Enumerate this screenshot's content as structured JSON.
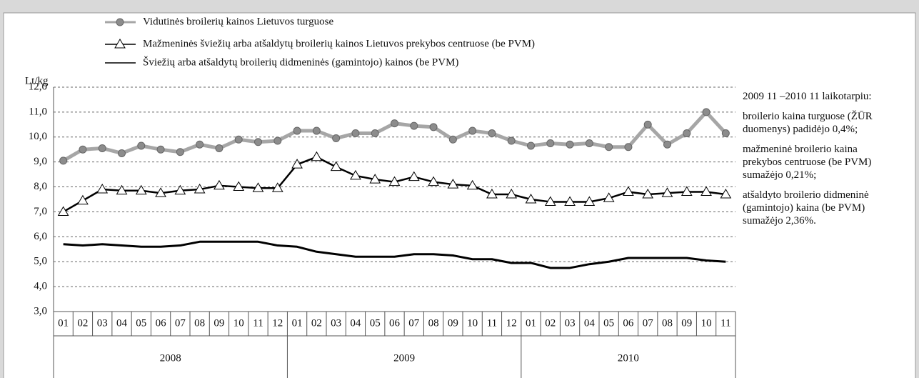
{
  "chart_data": {
    "type": "line",
    "y_label": "Lt/kg",
    "categories": [
      "01",
      "02",
      "03",
      "04",
      "05",
      "06",
      "07",
      "08",
      "09",
      "10",
      "11",
      "12",
      "01",
      "02",
      "03",
      "04",
      "05",
      "06",
      "07",
      "08",
      "09",
      "10",
      "11",
      "12",
      "01",
      "02",
      "03",
      "04",
      "05",
      "06",
      "07",
      "08",
      "09",
      "10",
      "11"
    ],
    "x_groups": [
      "2008",
      "2009",
      "2010"
    ],
    "series": [
      {
        "name": "Vidutinės broilerių kainos Lietuvos turguose",
        "color": "#a6a6a6",
        "marker": "circle",
        "values": [
          9.05,
          9.5,
          9.55,
          9.35,
          9.65,
          9.5,
          9.4,
          9.7,
          9.55,
          9.9,
          9.8,
          9.85,
          10.25,
          10.25,
          9.95,
          10.15,
          10.15,
          10.55,
          10.45,
          10.4,
          9.9,
          10.25,
          10.15,
          9.85,
          9.65,
          9.75,
          9.7,
          9.75,
          9.6,
          9.6,
          10.5,
          9.7,
          10.15,
          11.0,
          10.15
        ]
      },
      {
        "name": "Mažmeninės šviežių arba atšaldytų broilerių kainos Lietuvos prekybos centruose (be PVM)",
        "color": "#000000",
        "marker": "triangle",
        "values": [
          7.0,
          7.45,
          7.9,
          7.85,
          7.85,
          7.75,
          7.85,
          7.9,
          8.05,
          8.0,
          7.95,
          7.95,
          8.9,
          9.2,
          8.8,
          8.45,
          8.3,
          8.2,
          8.4,
          8.2,
          8.1,
          8.05,
          7.7,
          7.7,
          7.5,
          7.4,
          7.4,
          7.4,
          7.55,
          7.8,
          7.7,
          7.75,
          7.8,
          7.8,
          7.7
        ]
      },
      {
        "name": "Šviežių arba atšaldytų  broilerių didmeninės (gamintojo) kainos (be PVM)",
        "color": "#000000",
        "marker": "none",
        "values": [
          5.7,
          5.65,
          5.7,
          5.65,
          5.6,
          5.6,
          5.65,
          5.8,
          5.8,
          5.8,
          5.8,
          5.65,
          5.6,
          5.4,
          5.3,
          5.2,
          5.2,
          5.2,
          5.3,
          5.3,
          5.25,
          5.1,
          5.1,
          4.95,
          4.95,
          4.75,
          4.75,
          4.9,
          5.0,
          5.15,
          5.15,
          5.15,
          5.15,
          5.05,
          5.0
        ]
      }
    ],
    "ylim": [
      3,
      12
    ],
    "yticks": [
      {
        "value": 3,
        "label": "3,0"
      },
      {
        "value": 4,
        "label": "4,0"
      },
      {
        "value": 5,
        "label": "5,0"
      },
      {
        "value": 6,
        "label": "6,0"
      },
      {
        "value": 7,
        "label": "7,0"
      },
      {
        "value": 8,
        "label": "8,0"
      },
      {
        "value": 9,
        "label": "9,0"
      },
      {
        "value": 10,
        "label": "10,0"
      },
      {
        "value": 11,
        "label": "11,0"
      },
      {
        "value": 12,
        "label": "12,0"
      }
    ],
    "grid": true,
    "annotations": [
      "2009 11 –2010 11 laikotarpiu:",
      "broilerio kaina turguose (ŽŪR duomenys) padidėjo 0,4%;",
      "mažmeninė broilerio kaina prekybos centruose (be PVM) sumažėjo 0,21%;",
      "atšaldyto broilerio didmeninė (gamintojo) kaina (be PVM) sumažėjo 2,36%."
    ]
  }
}
